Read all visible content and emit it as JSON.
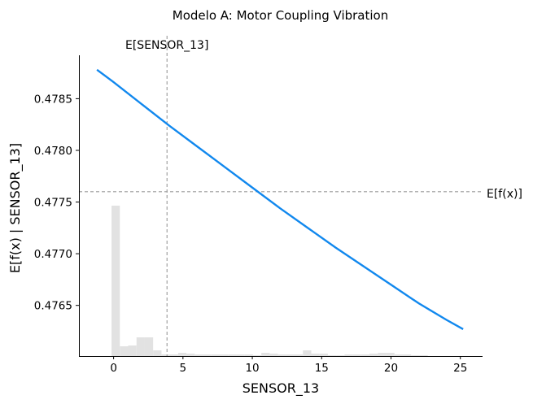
{
  "chart_data": {
    "type": "line",
    "title": "Modelo A: Motor Coupling Vibration",
    "xlabel": "SENSOR_13",
    "ylabel": "E[f(x) | SENSOR_13]",
    "xlim": [
      -2.5,
      26.6
    ],
    "ylim": [
      0.47601,
      0.47892
    ],
    "xticks": [
      0,
      5,
      10,
      15,
      20,
      25
    ],
    "xtick_labels": [
      "0",
      "5",
      "10",
      "15",
      "20",
      "25"
    ],
    "yticks": [
      0.4765,
      0.477,
      0.4775,
      0.478,
      0.4785
    ],
    "ytick_labels": [
      "0.4765",
      "0.4770",
      "0.4775",
      "0.4780",
      "0.4785"
    ],
    "grid": false,
    "series": [
      {
        "color": "#1188ee",
        "x": [
          -1.2,
          0,
          2,
          4,
          6,
          8,
          10,
          12,
          14,
          16,
          18,
          20,
          22,
          24,
          25.2
        ],
        "y": [
          0.47878,
          0.47866,
          0.47845,
          0.47824,
          0.47804,
          0.47784,
          0.47764,
          0.47744,
          0.47725,
          0.47706,
          0.47688,
          0.4767,
          0.47652,
          0.47636,
          0.47627
        ]
      }
    ],
    "reference_lines": [
      {
        "orientation": "horizontal",
        "value": 0.4776,
        "label": "E[f(x)]",
        "color": "#999999"
      },
      {
        "orientation": "vertical",
        "value": 3.85,
        "label": "E[SENSOR_13]",
        "color": "#999999"
      }
    ],
    "histogram": {
      "color": "#e2e2e2",
      "bin_edges": [
        -0.15,
        0.45,
        1.05,
        1.65,
        2.25,
        2.85,
        3.45,
        4.05,
        4.65,
        5.25,
        5.85,
        6.45,
        7.05,
        7.65,
        8.25,
        8.85,
        9.45,
        10.05,
        10.65,
        11.25,
        11.85,
        12.45,
        13.05,
        13.65,
        14.25,
        14.85,
        15.45,
        16.05,
        16.65,
        17.25,
        17.85,
        18.45,
        19.05,
        19.65,
        20.25,
        20.85,
        21.45,
        22.05,
        22.65
      ],
      "counts": [
        185,
        12,
        13,
        23,
        23,
        7,
        2,
        2,
        4,
        3,
        2,
        2,
        2,
        2,
        2,
        2,
        2,
        1,
        4,
        3,
        2,
        2,
        2,
        7,
        3,
        3,
        1,
        1,
        2,
        2,
        2,
        3,
        4,
        4,
        2,
        2,
        1,
        1
      ]
    }
  }
}
